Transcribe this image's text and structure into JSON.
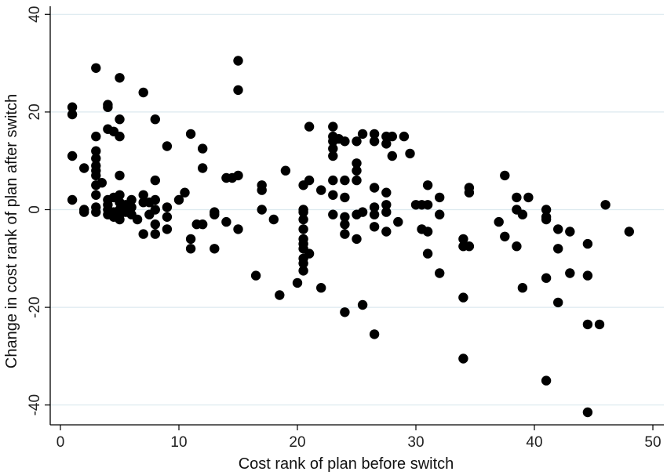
{
  "chart_data": {
    "type": "scatter",
    "xlabel": "Cost rank of plan before switch",
    "ylabel": "Change in cost rank of plan after switch",
    "xlim": [
      0,
      50
    ],
    "ylim": [
      -40,
      40
    ],
    "xticks": [
      "0",
      "10",
      "20",
      "30",
      "40",
      "50"
    ],
    "yticks": [
      "-40",
      "-20",
      "0",
      "20",
      "40"
    ],
    "grid": true,
    "marker_color": "#000000",
    "grid_color": "#dce9ef",
    "points": [
      [
        1,
        21
      ],
      [
        1,
        19.5
      ],
      [
        1,
        11
      ],
      [
        1,
        2
      ],
      [
        2,
        8.5
      ],
      [
        2,
        0
      ],
      [
        2,
        -0.5
      ],
      [
        3,
        29
      ],
      [
        3,
        15
      ],
      [
        3,
        12
      ],
      [
        3,
        10.5
      ],
      [
        3,
        9
      ],
      [
        3,
        8
      ],
      [
        3,
        7
      ],
      [
        3,
        5
      ],
      [
        3,
        3
      ],
      [
        3,
        0.5
      ],
      [
        3,
        -0.5
      ],
      [
        3.5,
        5.5
      ],
      [
        4,
        21.5
      ],
      [
        4,
        21
      ],
      [
        4,
        16.5
      ],
      [
        4,
        2
      ],
      [
        4,
        1
      ],
      [
        4,
        0
      ],
      [
        4,
        -1
      ],
      [
        4.5,
        16
      ],
      [
        4.5,
        2.5
      ],
      [
        4.5,
        -0.5
      ],
      [
        4.5,
        -1.5
      ],
      [
        5,
        27
      ],
      [
        5,
        18.5
      ],
      [
        5,
        15
      ],
      [
        5,
        7
      ],
      [
        5,
        3
      ],
      [
        5,
        1.5
      ],
      [
        5,
        0
      ],
      [
        5,
        -1
      ],
      [
        5,
        -2
      ],
      [
        5.5,
        1
      ],
      [
        5.5,
        -0.5
      ],
      [
        6,
        2
      ],
      [
        6,
        0.5
      ],
      [
        6,
        -1
      ],
      [
        6.5,
        -2
      ],
      [
        7,
        24
      ],
      [
        7,
        3
      ],
      [
        7,
        1.5
      ],
      [
        7,
        -5
      ],
      [
        7.5,
        1.5
      ],
      [
        7.5,
        -1
      ],
      [
        8,
        18.5
      ],
      [
        8,
        6
      ],
      [
        8,
        2
      ],
      [
        8,
        0
      ],
      [
        8,
        -3
      ],
      [
        8,
        -5
      ],
      [
        9,
        13
      ],
      [
        9,
        0.5
      ],
      [
        9,
        -1.5
      ],
      [
        9,
        -4
      ],
      [
        10,
        2
      ],
      [
        10.5,
        3.5
      ],
      [
        11,
        15.5
      ],
      [
        11,
        -6
      ],
      [
        11,
        -8
      ],
      [
        11.5,
        -3
      ],
      [
        12,
        12.5
      ],
      [
        12,
        8.5
      ],
      [
        12,
        -3
      ],
      [
        13,
        -0.5
      ],
      [
        13,
        -1
      ],
      [
        13,
        -8
      ],
      [
        14,
        6.5
      ],
      [
        14,
        -2.5
      ],
      [
        14.5,
        6.5
      ],
      [
        15,
        30.5
      ],
      [
        15,
        24.5
      ],
      [
        15,
        7
      ],
      [
        15,
        -4
      ],
      [
        16.5,
        -13.5
      ],
      [
        17,
        5
      ],
      [
        17,
        4
      ],
      [
        17,
        0
      ],
      [
        18,
        -2
      ],
      [
        18.5,
        -17.5
      ],
      [
        19,
        8
      ],
      [
        20,
        -15
      ],
      [
        20.5,
        5
      ],
      [
        20.5,
        0
      ],
      [
        20.5,
        -0.5
      ],
      [
        20.5,
        -2
      ],
      [
        20.5,
        -4
      ],
      [
        20.5,
        -6
      ],
      [
        20.5,
        -7
      ],
      [
        20.5,
        -8
      ],
      [
        20.5,
        -10
      ],
      [
        20.5,
        -11
      ],
      [
        20.5,
        -12.5
      ],
      [
        21,
        17
      ],
      [
        21,
        6
      ],
      [
        21,
        -9
      ],
      [
        22,
        4
      ],
      [
        22,
        -16
      ],
      [
        23,
        17
      ],
      [
        23,
        15
      ],
      [
        23,
        14
      ],
      [
        23,
        12.5
      ],
      [
        23,
        11
      ],
      [
        23,
        6
      ],
      [
        23,
        3
      ],
      [
        23,
        -1
      ],
      [
        23.5,
        14.5
      ],
      [
        24,
        14
      ],
      [
        24,
        6
      ],
      [
        24,
        2.5
      ],
      [
        24,
        -1.5
      ],
      [
        24,
        -3
      ],
      [
        24,
        -5
      ],
      [
        24,
        -21
      ],
      [
        25,
        14
      ],
      [
        25,
        9.5
      ],
      [
        25,
        8
      ],
      [
        25,
        6
      ],
      [
        25,
        -1
      ],
      [
        25,
        -6
      ],
      [
        25.5,
        15.5
      ],
      [
        25.5,
        -0.5
      ],
      [
        25.5,
        -19.5
      ],
      [
        26.5,
        15.5
      ],
      [
        26.5,
        14
      ],
      [
        26.5,
        4.5
      ],
      [
        26.5,
        0.5
      ],
      [
        26.5,
        -1
      ],
      [
        26.5,
        -3.5
      ],
      [
        26.5,
        -25.5
      ],
      [
        27.5,
        15
      ],
      [
        27.5,
        13.5
      ],
      [
        27.5,
        3.5
      ],
      [
        27.5,
        1
      ],
      [
        27.5,
        -0.5
      ],
      [
        27.5,
        -4.5
      ],
      [
        28,
        15
      ],
      [
        28,
        11
      ],
      [
        28.5,
        -2.5
      ],
      [
        29,
        15
      ],
      [
        29.5,
        11.5
      ],
      [
        30,
        1
      ],
      [
        30.5,
        1
      ],
      [
        30.5,
        -4
      ],
      [
        31,
        5
      ],
      [
        31,
        1
      ],
      [
        31,
        -4.5
      ],
      [
        31,
        -9
      ],
      [
        32,
        2.5
      ],
      [
        32,
        -1
      ],
      [
        32,
        -13
      ],
      [
        34,
        -6
      ],
      [
        34,
        -7.5
      ],
      [
        34,
        -18
      ],
      [
        34,
        -30.5
      ],
      [
        34.5,
        4.5
      ],
      [
        34.5,
        3.5
      ],
      [
        34.5,
        -7.5
      ],
      [
        37,
        -2.5
      ],
      [
        37.5,
        7
      ],
      [
        37.5,
        -5.5
      ],
      [
        38.5,
        2.5
      ],
      [
        38.5,
        0
      ],
      [
        38.5,
        -7.5
      ],
      [
        39,
        -1
      ],
      [
        39,
        -16
      ],
      [
        39.5,
        2.5
      ],
      [
        41,
        0
      ],
      [
        41,
        -1.5
      ],
      [
        41,
        -2
      ],
      [
        41,
        -14
      ],
      [
        41,
        -35
      ],
      [
        42,
        -4
      ],
      [
        42,
        -8
      ],
      [
        42,
        -19
      ],
      [
        43,
        -4.5
      ],
      [
        43,
        -13
      ],
      [
        44.5,
        -7
      ],
      [
        44.5,
        -13.5
      ],
      [
        44.5,
        -23.5
      ],
      [
        44.5,
        -41.5
      ],
      [
        45.5,
        -23.5
      ],
      [
        46,
        1
      ],
      [
        48,
        -4.5
      ]
    ]
  }
}
